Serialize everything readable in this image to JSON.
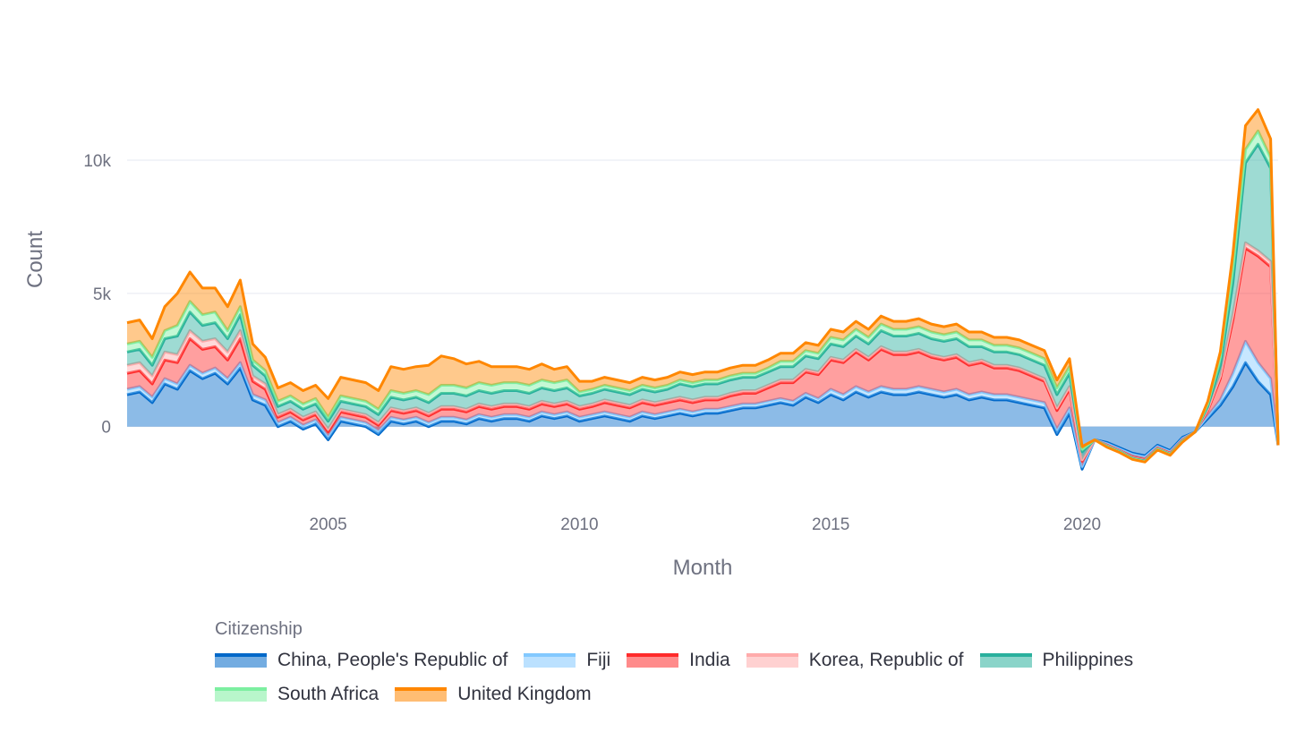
{
  "chart_data": {
    "type": "area",
    "stacked": true,
    "xlabel": "Month",
    "ylabel": "Count",
    "x_ticks": [
      2005,
      2010,
      2015,
      2020
    ],
    "y_ticks": [
      {
        "value": 0,
        "label": "0"
      },
      {
        "value": 5000,
        "label": "5k"
      },
      {
        "value": 10000,
        "label": "10k"
      }
    ],
    "xlim": [
      2001.0,
      2023.9
    ],
    "ylim": [
      -2800,
      14000
    ],
    "grid": true,
    "legend_title": "Citizenship",
    "legend_position": "bottom",
    "x": [
      2001.0,
      2001.25,
      2001.5,
      2001.75,
      2002.0,
      2002.25,
      2002.5,
      2002.75,
      2003.0,
      2003.25,
      2003.5,
      2003.75,
      2004.0,
      2004.25,
      2004.5,
      2004.75,
      2005.0,
      2005.25,
      2005.5,
      2005.75,
      2006.0,
      2006.25,
      2006.5,
      2006.75,
      2007.0,
      2007.25,
      2007.5,
      2007.75,
      2008.0,
      2008.25,
      2008.5,
      2008.75,
      2009.0,
      2009.25,
      2009.5,
      2009.75,
      2010.0,
      2010.25,
      2010.5,
      2010.75,
      2011.0,
      2011.25,
      2011.5,
      2011.75,
      2012.0,
      2012.25,
      2012.5,
      2012.75,
      2013.0,
      2013.25,
      2013.5,
      2013.75,
      2014.0,
      2014.25,
      2014.5,
      2014.75,
      2015.0,
      2015.25,
      2015.5,
      2015.75,
      2016.0,
      2016.25,
      2016.5,
      2016.75,
      2017.0,
      2017.25,
      2017.5,
      2017.75,
      2018.0,
      2018.25,
      2018.5,
      2018.75,
      2019.0,
      2019.25,
      2019.5,
      2019.75,
      2020.0,
      2020.25,
      2020.5,
      2020.75,
      2021.0,
      2021.25,
      2021.5,
      2021.75,
      2022.0,
      2022.25,
      2022.5,
      2022.75,
      2023.0,
      2023.25,
      2023.5,
      2023.75,
      2023.9
    ],
    "series": [
      {
        "name": "China, People's Republic of",
        "color": "#0068c9",
        "values": [
          1200,
          1300,
          900,
          1600,
          1400,
          2100,
          1800,
          2000,
          1600,
          2200,
          1000,
          800,
          0,
          200,
          -100,
          100,
          -500,
          200,
          100,
          0,
          -300,
          200,
          100,
          200,
          0,
          200,
          200,
          100,
          300,
          200,
          300,
          300,
          200,
          400,
          300,
          400,
          200,
          300,
          400,
          300,
          200,
          400,
          300,
          400,
          500,
          400,
          500,
          500,
          600,
          700,
          700,
          800,
          900,
          800,
          1100,
          900,
          1200,
          1000,
          1300,
          1100,
          1300,
          1200,
          1200,
          1300,
          1200,
          1100,
          1200,
          1000,
          1100,
          1000,
          1000,
          900,
          800,
          700,
          -300,
          500,
          -1600,
          -500,
          -600,
          -800,
          -1000,
          -1100,
          -700,
          -900,
          -400,
          -200,
          300,
          800,
          1500,
          2400,
          1700,
          1200,
          -700
        ]
      },
      {
        "name": "Fiji",
        "color": "#83c9ff",
        "values": [
          200,
          200,
          200,
          200,
          200,
          200,
          200,
          200,
          200,
          200,
          200,
          200,
          150,
          150,
          150,
          150,
          150,
          150,
          150,
          150,
          150,
          150,
          150,
          150,
          150,
          150,
          150,
          150,
          150,
          150,
          150,
          150,
          150,
          150,
          150,
          150,
          150,
          150,
          150,
          150,
          150,
          150,
          150,
          150,
          150,
          150,
          150,
          150,
          150,
          150,
          150,
          150,
          150,
          150,
          150,
          150,
          200,
          200,
          200,
          200,
          200,
          200,
          200,
          200,
          200,
          200,
          200,
          200,
          200,
          200,
          200,
          200,
          200,
          200,
          200,
          200,
          100,
          0,
          -50,
          -50,
          -50,
          -50,
          -50,
          -50,
          -50,
          0,
          100,
          200,
          500,
          800,
          700,
          600,
          0
        ]
      },
      {
        "name": "India",
        "color": "#ff2b2b",
        "values": [
          600,
          600,
          500,
          700,
          800,
          1000,
          900,
          800,
          700,
          900,
          500,
          400,
          200,
          200,
          200,
          200,
          150,
          200,
          200,
          200,
          200,
          250,
          250,
          250,
          250,
          300,
          300,
          300,
          300,
          300,
          300,
          300,
          300,
          300,
          300,
          300,
          300,
          300,
          350,
          350,
          350,
          350,
          350,
          350,
          350,
          350,
          350,
          350,
          400,
          400,
          400,
          500,
          600,
          700,
          800,
          900,
          1100,
          1200,
          1300,
          1200,
          1400,
          1300,
          1300,
          1300,
          1200,
          1200,
          1200,
          1100,
          1100,
          1000,
          1000,
          1000,
          900,
          800,
          700,
          700,
          200,
          0,
          -50,
          -50,
          -100,
          -100,
          -50,
          -50,
          -50,
          0,
          200,
          800,
          2000,
          3500,
          4000,
          4200,
          0
        ]
      },
      {
        "name": "Korea, Republic of",
        "color": "#ffabab",
        "values": [
          300,
          300,
          300,
          300,
          300,
          300,
          300,
          300,
          300,
          300,
          200,
          200,
          100,
          100,
          100,
          100,
          100,
          100,
          100,
          100,
          100,
          100,
          100,
          100,
          100,
          100,
          100,
          100,
          100,
          100,
          100,
          100,
          100,
          100,
          100,
          100,
          100,
          100,
          100,
          100,
          100,
          100,
          100,
          100,
          100,
          100,
          100,
          100,
          100,
          100,
          100,
          100,
          100,
          100,
          100,
          100,
          100,
          100,
          100,
          100,
          100,
          100,
          100,
          100,
          100,
          100,
          100,
          100,
          100,
          100,
          100,
          100,
          100,
          100,
          100,
          100,
          50,
          0,
          -20,
          -20,
          -20,
          -20,
          -20,
          -20,
          -20,
          0,
          50,
          100,
          200,
          200,
          200,
          200,
          0
        ]
      },
      {
        "name": "Philippines",
        "color": "#29b09d",
        "values": [
          500,
          500,
          400,
          500,
          700,
          700,
          600,
          600,
          500,
          600,
          400,
          300,
          300,
          300,
          300,
          300,
          300,
          300,
          300,
          300,
          300,
          400,
          400,
          400,
          400,
          500,
          500,
          500,
          500,
          500,
          500,
          500,
          500,
          500,
          500,
          500,
          400,
          400,
          400,
          400,
          400,
          400,
          400,
          400,
          500,
          500,
          500,
          500,
          500,
          500,
          500,
          500,
          500,
          500,
          500,
          500,
          500,
          500,
          500,
          500,
          600,
          600,
          600,
          600,
          600,
          600,
          600,
          600,
          500,
          500,
          500,
          500,
          500,
          500,
          500,
          500,
          300,
          0,
          -20,
          -20,
          -20,
          -20,
          -20,
          -20,
          -20,
          0,
          100,
          400,
          1200,
          3000,
          4000,
          3500,
          0
        ]
      },
      {
        "name": "South Africa",
        "color": "#7defa1",
        "values": [
          300,
          300,
          300,
          300,
          400,
          400,
          400,
          400,
          300,
          300,
          200,
          200,
          200,
          200,
          200,
          200,
          150,
          200,
          200,
          200,
          200,
          250,
          250,
          250,
          300,
          300,
          300,
          300,
          300,
          300,
          300,
          300,
          300,
          300,
          300,
          300,
          150,
          150,
          150,
          150,
          150,
          150,
          150,
          150,
          150,
          150,
          150,
          150,
          150,
          150,
          150,
          150,
          200,
          200,
          200,
          200,
          250,
          250,
          250,
          250,
          250,
          250,
          250,
          250,
          250,
          250,
          250,
          250,
          250,
          250,
          250,
          250,
          250,
          250,
          250,
          250,
          100,
          0,
          -20,
          -20,
          -20,
          -20,
          -20,
          -20,
          -20,
          0,
          100,
          300,
          600,
          500,
          500,
          400,
          0
        ]
      },
      {
        "name": "United Kingdom",
        "color": "#ff8700",
        "values": [
          800,
          800,
          700,
          900,
          1200,
          1100,
          1000,
          900,
          900,
          1000,
          600,
          500,
          500,
          500,
          500,
          500,
          700,
          700,
          700,
          700,
          700,
          900,
          900,
          900,
          1100,
          1100,
          1000,
          900,
          800,
          700,
          600,
          600,
          600,
          600,
          500,
          500,
          400,
          300,
          300,
          300,
          300,
          300,
          300,
          300,
          300,
          300,
          300,
          300,
          300,
          300,
          300,
          300,
          300,
          300,
          300,
          300,
          300,
          300,
          300,
          300,
          300,
          300,
          300,
          300,
          300,
          300,
          300,
          300,
          300,
          300,
          300,
          300,
          300,
          300,
          300,
          300,
          100,
          0,
          -20,
          -20,
          -20,
          -20,
          -20,
          -20,
          -20,
          0,
          100,
          200,
          500,
          900,
          800,
          700,
          0
        ]
      }
    ]
  }
}
